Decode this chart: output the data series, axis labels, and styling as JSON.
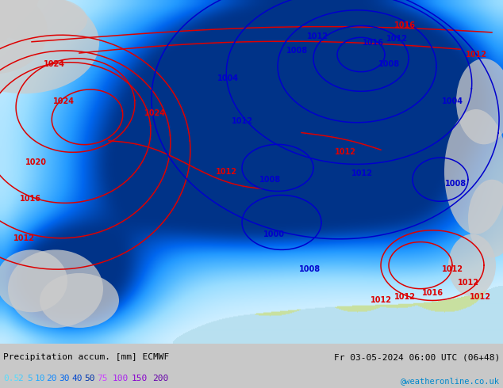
{
  "title_left": "Precipitation accum. [mm] ECMWF",
  "title_right": "Fr 03-05-2024 06:00 UTC (06+48)",
  "credit": "@weatheronline.co.uk",
  "legend_values": [
    "0.5",
    "2",
    "5",
    "10",
    "20",
    "30",
    "40",
    "50",
    "75",
    "100",
    "150",
    "200"
  ],
  "legend_colors_cyan": [
    "#55ddff",
    "#44ccff",
    "#33bbff",
    "#22aaff",
    "#1188ff",
    "#0066ee",
    "#0044cc",
    "#0033aa"
  ],
  "legend_colors_magenta": [
    "#cc44ff",
    "#aa22ee",
    "#8800cc",
    "#6600aa"
  ],
  "figsize": [
    6.34,
    4.9
  ],
  "dpi": 100,
  "bg_gray": "#c8c8c8",
  "sea_color": "#b8e0f0",
  "land_gray": "#d0d0d0",
  "land_green_light": "#c8e0a0",
  "land_green_mid": "#a8d070",
  "precip_lightest": "#cceeff",
  "precip_light": "#99ddff",
  "precip_mid": "#55bbff",
  "precip_strong": "#2299ff",
  "precip_dark": "#0066ee",
  "precip_darkest": "#003388"
}
